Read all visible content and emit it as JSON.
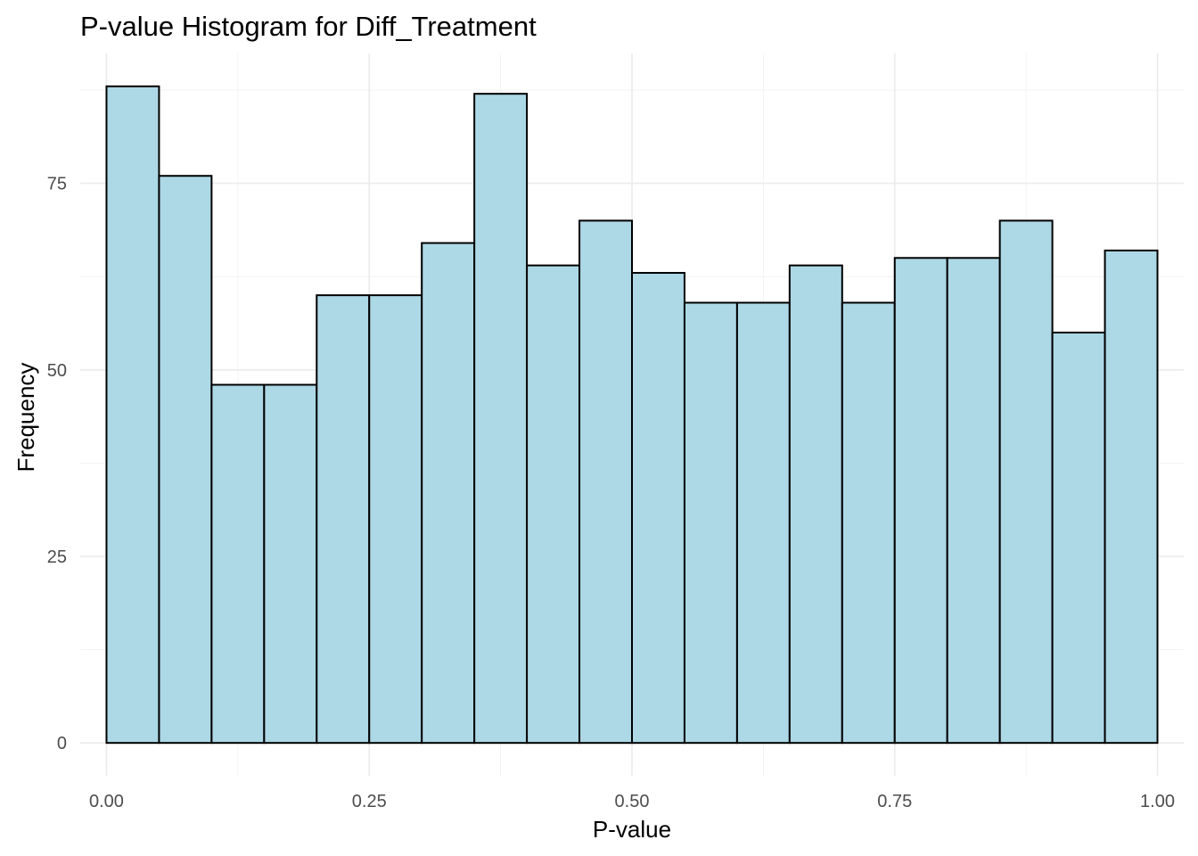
{
  "chart_data": {
    "type": "bar",
    "title": "P-value Histogram for Diff_Treatment",
    "xlabel": "P-value",
    "ylabel": "Frequency",
    "bin_width": 0.05,
    "bins": [
      [
        0.0,
        0.05
      ],
      [
        0.05,
        0.1
      ],
      [
        0.1,
        0.15
      ],
      [
        0.15,
        0.2
      ],
      [
        0.2,
        0.25
      ],
      [
        0.25,
        0.3
      ],
      [
        0.3,
        0.35
      ],
      [
        0.35,
        0.4
      ],
      [
        0.4,
        0.45
      ],
      [
        0.45,
        0.5
      ],
      [
        0.5,
        0.55
      ],
      [
        0.55,
        0.6
      ],
      [
        0.6,
        0.65
      ],
      [
        0.65,
        0.7
      ],
      [
        0.7,
        0.75
      ],
      [
        0.75,
        0.8
      ],
      [
        0.8,
        0.85
      ],
      [
        0.85,
        0.9
      ],
      [
        0.9,
        0.95
      ],
      [
        0.95,
        1.0
      ]
    ],
    "values": [
      88,
      76,
      48,
      48,
      60,
      60,
      67,
      87,
      64,
      70,
      63,
      59,
      59,
      64,
      59,
      65,
      65,
      70,
      55,
      66
    ],
    "xlim": [
      -0.025,
      1.025
    ],
    "ylim": [
      -4.4,
      92.4
    ],
    "x_ticks": [
      0.0,
      0.25,
      0.5,
      0.75,
      1.0
    ],
    "x_tick_labels": [
      "0.00",
      "0.25",
      "0.50",
      "0.75",
      "1.00"
    ],
    "y_ticks": [
      0,
      25,
      50,
      75
    ],
    "y_tick_labels": [
      "0",
      "25",
      "50",
      "75"
    ],
    "grid": true,
    "fill_color": "#add8e6",
    "edge_color": "#000000",
    "legend": "none"
  }
}
